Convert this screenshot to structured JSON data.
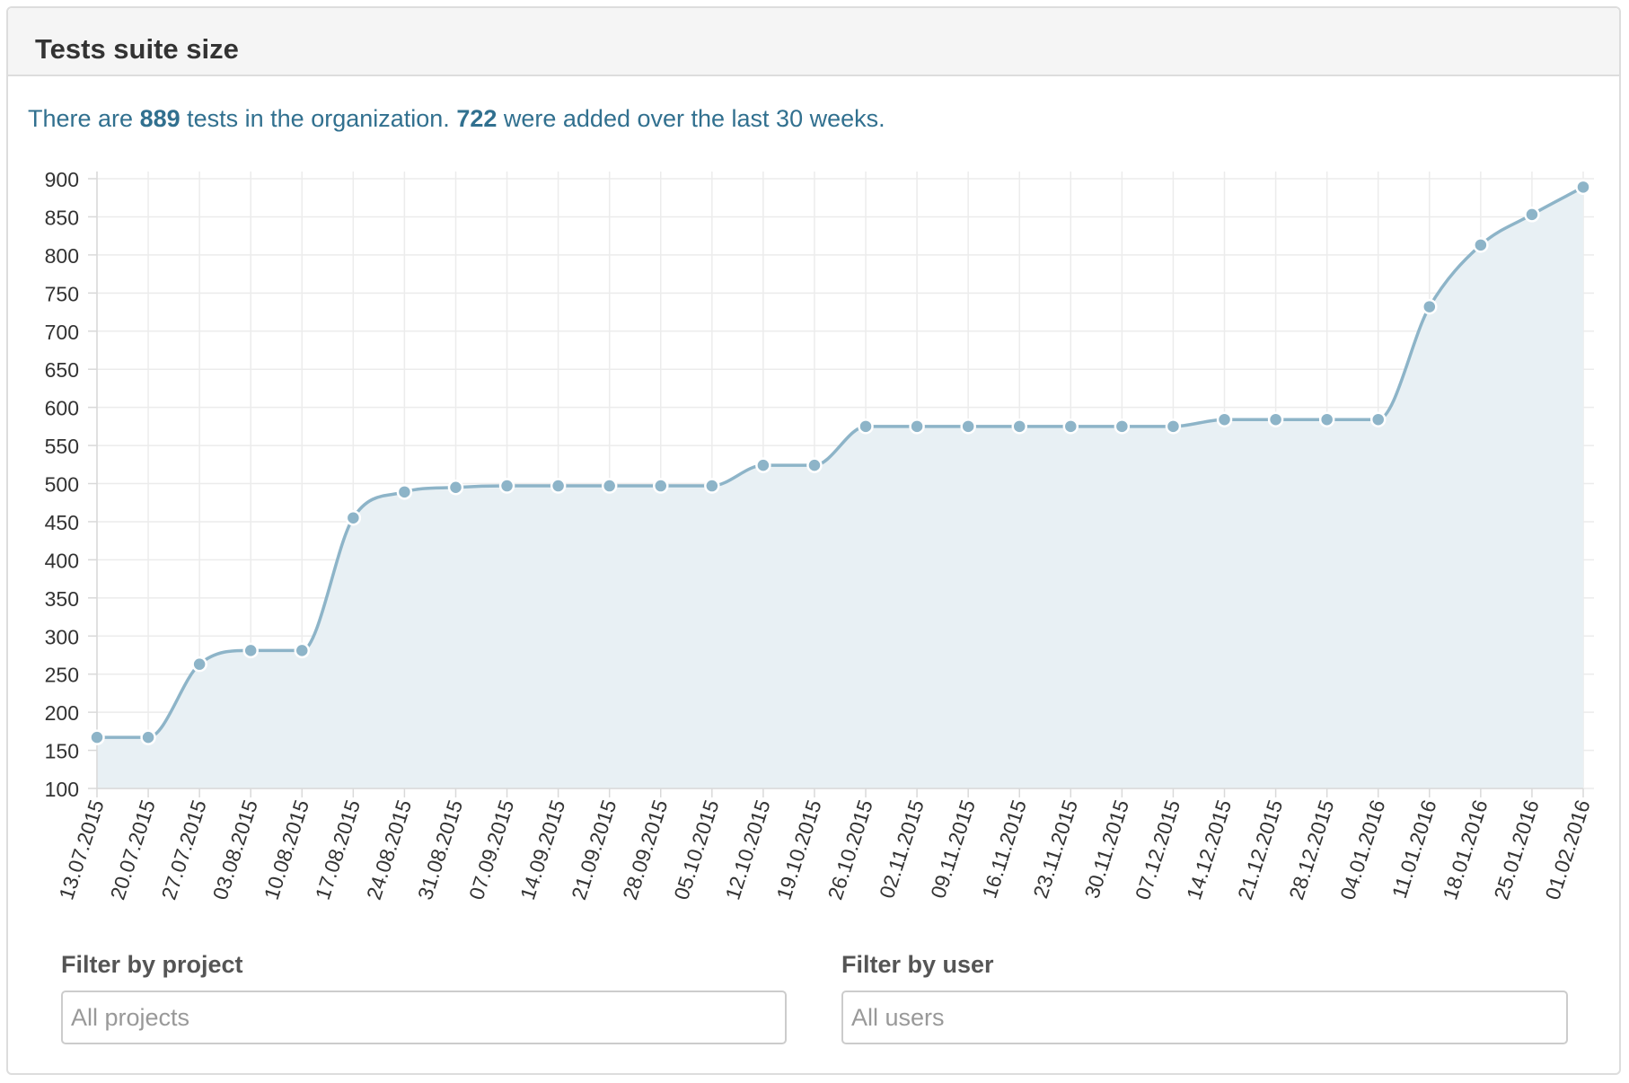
{
  "panel": {
    "title": "Tests suite size"
  },
  "summary": {
    "prefix": "There are ",
    "total_tests": "889",
    "middle": " tests in the organization. ",
    "added_tests": "722",
    "suffix": " were added over the last 30 weeks."
  },
  "chart_data": {
    "type": "area",
    "title": "",
    "xlabel": "",
    "ylabel": "",
    "ylim": [
      100,
      900
    ],
    "yticks": [
      100,
      150,
      200,
      250,
      300,
      350,
      400,
      450,
      500,
      550,
      600,
      650,
      700,
      750,
      800,
      850,
      900
    ],
    "grid": true,
    "categories": [
      "13.07.2015",
      "20.07.2015",
      "27.07.2015",
      "03.08.2015",
      "10.08.2015",
      "17.08.2015",
      "24.08.2015",
      "31.08.2015",
      "07.09.2015",
      "14.09.2015",
      "21.09.2015",
      "28.09.2015",
      "05.10.2015",
      "12.10.2015",
      "19.10.2015",
      "26.10.2015",
      "02.11.2015",
      "09.11.2015",
      "16.11.2015",
      "23.11.2015",
      "30.11.2015",
      "07.12.2015",
      "14.12.2015",
      "21.12.2015",
      "28.12.2015",
      "04.01.2016",
      "11.01.2016",
      "18.01.2016",
      "25.01.2016",
      "01.02.2016"
    ],
    "values": [
      167,
      167,
      263,
      281,
      281,
      455,
      489,
      495,
      497,
      497,
      497,
      497,
      497,
      524,
      524,
      575,
      575,
      575,
      575,
      575,
      575,
      575,
      584,
      584,
      584,
      584,
      732,
      813,
      853,
      889
    ],
    "line_color": "#8db4c8",
    "fill_color": "#e8f0f4"
  },
  "filters": {
    "project": {
      "label": "Filter by project",
      "placeholder": "All projects"
    },
    "user": {
      "label": "Filter by user",
      "placeholder": "All users"
    }
  }
}
